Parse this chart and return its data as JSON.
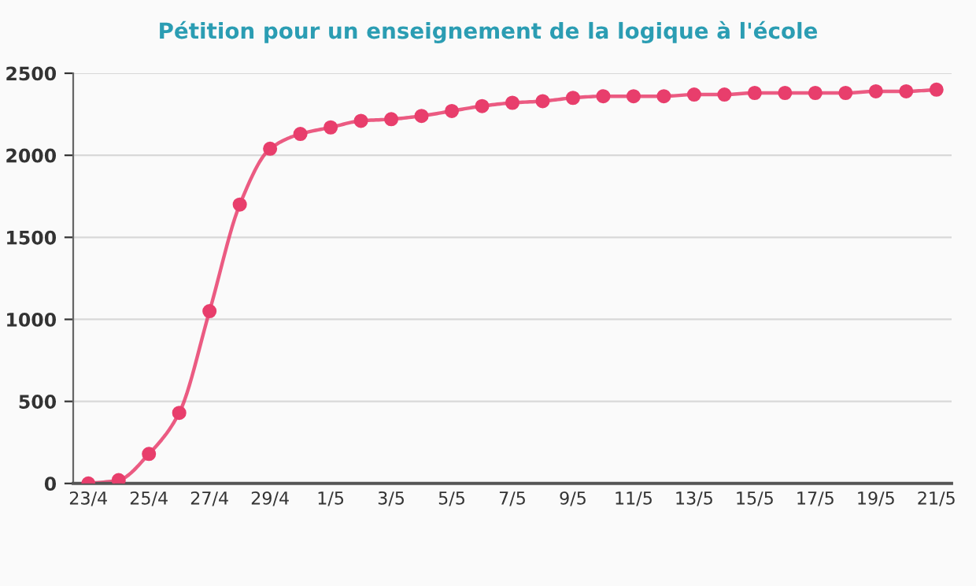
{
  "chart_data": {
    "type": "line",
    "title": "Pétition pour un enseignement de la logique à l'école",
    "categories": [
      "23/4",
      null,
      "25/4",
      null,
      "27/4",
      null,
      "29/4",
      null,
      "1/5",
      null,
      "3/5",
      null,
      "5/5",
      null,
      "7/5",
      null,
      "9/5",
      null,
      "11/5",
      null,
      "13/5",
      null,
      "15/5",
      null,
      "17/5",
      null,
      "19/5",
      null,
      "21/5"
    ],
    "series": [
      {
        "color": "#e83e6c",
        "values": [
          0,
          20,
          180,
          430,
          1050,
          1700,
          2040,
          2130,
          2170,
          2210,
          2220,
          2240,
          2270,
          2300,
          2320,
          2330,
          2350,
          2360,
          2360,
          2360,
          2370,
          2370,
          2380,
          2380,
          2380,
          2380,
          2390,
          2390,
          2400
        ]
      }
    ],
    "ylim": [
      0,
      2500
    ],
    "yticks": [
      0,
      500,
      1000,
      1500,
      2000,
      2500
    ],
    "grid": "y",
    "marker": "circle",
    "line_style": "solid",
    "legend": false
  }
}
